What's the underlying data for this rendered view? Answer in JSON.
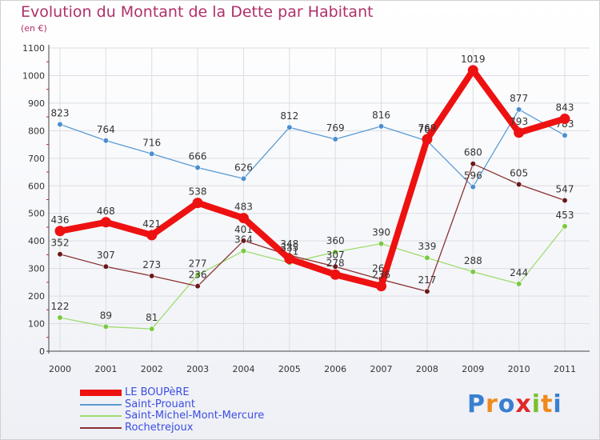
{
  "header": {
    "title": "Evolution du Montant de la Dette par Habitant",
    "unit": "(en €)"
  },
  "brand": {
    "text": "Proxiti",
    "colors": [
      "#3a7fd0",
      "#f08a1a",
      "#3a7fd0",
      "#e0282a",
      "#7bbf2a",
      "#f08a1a",
      "#3a7fd0"
    ]
  },
  "chart_data": {
    "type": "line",
    "categories": [
      "2000",
      "2001",
      "2002",
      "2003",
      "2004",
      "2005",
      "2006",
      "2007",
      "2008",
      "2009",
      "2010",
      "2011"
    ],
    "ylim": [
      0,
      1100
    ],
    "yticks": [
      "0",
      "100",
      "200",
      "300",
      "400",
      "500",
      "600",
      "700",
      "800",
      "900",
      "1000",
      "1100"
    ],
    "grid": true,
    "legend_position": "bottom-left",
    "series": [
      {
        "name": "Saint-Prouant",
        "color": "#5b9bd5",
        "marker": "#4a8fd0",
        "emphasis": false,
        "values": [
          823,
          764,
          716,
          666,
          626,
          812,
          769,
          816,
          763,
          596,
          877,
          783
        ],
        "labels": [
          "823",
          "764",
          "716",
          "666",
          "626",
          "812",
          "769",
          "816",
          "763",
          "596",
          "877",
          "783"
        ]
      },
      {
        "name": "Saint-Michel-Mont-Mercure",
        "color": "#9fdc6e",
        "marker": "#7ac943",
        "emphasis": false,
        "values": [
          122,
          89,
          81,
          277,
          364,
          321,
          360,
          390,
          339,
          288,
          244,
          453
        ],
        "labels": [
          "122",
          "89",
          "81",
          "277",
          "364",
          "321",
          "360",
          "390",
          "339",
          "288",
          "244",
          "453"
        ]
      },
      {
        "name": "Rochetrejoux",
        "color": "#8a3030",
        "marker": "#6a1a1a",
        "emphasis": false,
        "values": [
          352,
          307,
          273,
          236,
          401,
          348,
          307,
          260,
          217,
          680,
          605,
          547
        ],
        "labels": [
          "352",
          "307",
          "273",
          "236",
          "401",
          "348",
          "307",
          "260",
          "217",
          "680",
          "605",
          "547"
        ]
      },
      {
        "name": "LE BOUPèRE",
        "color": "#ee1111",
        "marker": "#ee1111",
        "emphasis": true,
        "values": [
          436,
          468,
          421,
          538,
          483,
          335,
          278,
          236,
          769,
          1019,
          793,
          843
        ],
        "labels": [
          "436",
          "468",
          "421",
          "538",
          "483",
          "335",
          "278",
          "236",
          "769",
          "1019",
          "793",
          "843"
        ]
      }
    ],
    "legend": [
      {
        "name": "LE BOUPèRE",
        "color": "#ee1111",
        "thick": true
      },
      {
        "name": "Saint-Prouant",
        "color": "#5b9bd5",
        "thick": false
      },
      {
        "name": "Saint-Michel-Mont-Mercure",
        "color": "#9fdc6e",
        "thick": false
      },
      {
        "name": "Rochetrejoux",
        "color": "#8a3030",
        "thick": false
      }
    ]
  }
}
